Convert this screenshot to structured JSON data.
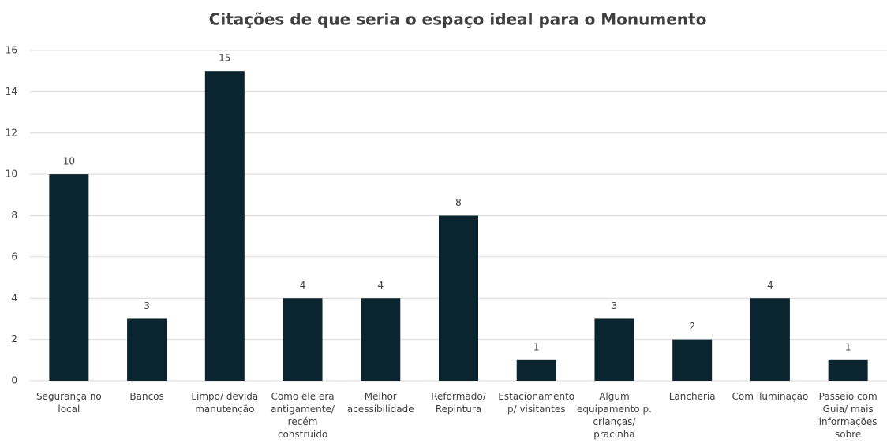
{
  "chart_data": {
    "type": "bar",
    "title": "Citações de que seria o espaço ideal para o Monumento",
    "categories": [
      "Segurança no local",
      "Bancos",
      "Limpo/ devida manutenção",
      "Como ele era antigamente/ recém construído",
      "Melhor acessibilidade",
      "Reformado/ Repintura",
      "Estacionamento p/ visitantes",
      "Algum equipamento p. crianças/ pracinha",
      "Lancheria",
      "Com iluminação",
      "Passeio com Guia/ mais informações sobre"
    ],
    "values": [
      10,
      3,
      15,
      4,
      4,
      8,
      1,
      3,
      2,
      4,
      1
    ],
    "color": "#0b2530",
    "ylim": [
      0,
      16
    ],
    "yticks": [
      0,
      2,
      4,
      6,
      8,
      10,
      12,
      14,
      16
    ],
    "grid": true
  }
}
